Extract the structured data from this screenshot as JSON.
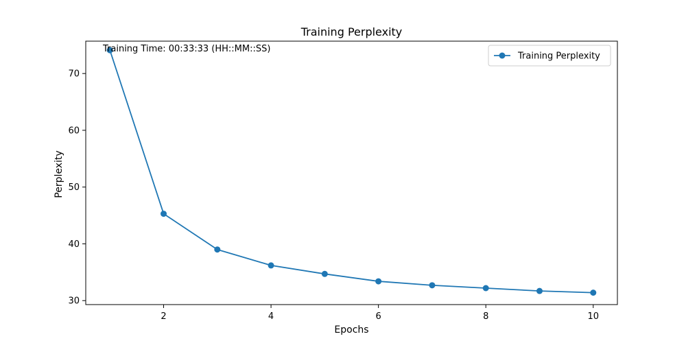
{
  "chart_data": {
    "type": "line",
    "title": "Training Perplexity",
    "xlabel": "Epochs",
    "ylabel": "Perplexity",
    "xlim": [
      0.55,
      10.45
    ],
    "ylim": [
      29.3,
      75.7
    ],
    "xticks": [
      2,
      4,
      6,
      8,
      10
    ],
    "yticks": [
      30,
      40,
      50,
      60,
      70
    ],
    "grid": false,
    "legend_position": "top-right",
    "annotation": "Training Time: 00:33:33 (HH::MM::SS)",
    "series": [
      {
        "name": "Training Perplexity",
        "color": "#1f77b4",
        "marker": "circle",
        "x": [
          1,
          2,
          3,
          4,
          5,
          6,
          7,
          8,
          9,
          10
        ],
        "y": [
          74.1,
          45.3,
          39.0,
          36.2,
          34.7,
          33.4,
          32.7,
          32.2,
          31.7,
          31.4
        ]
      }
    ]
  }
}
